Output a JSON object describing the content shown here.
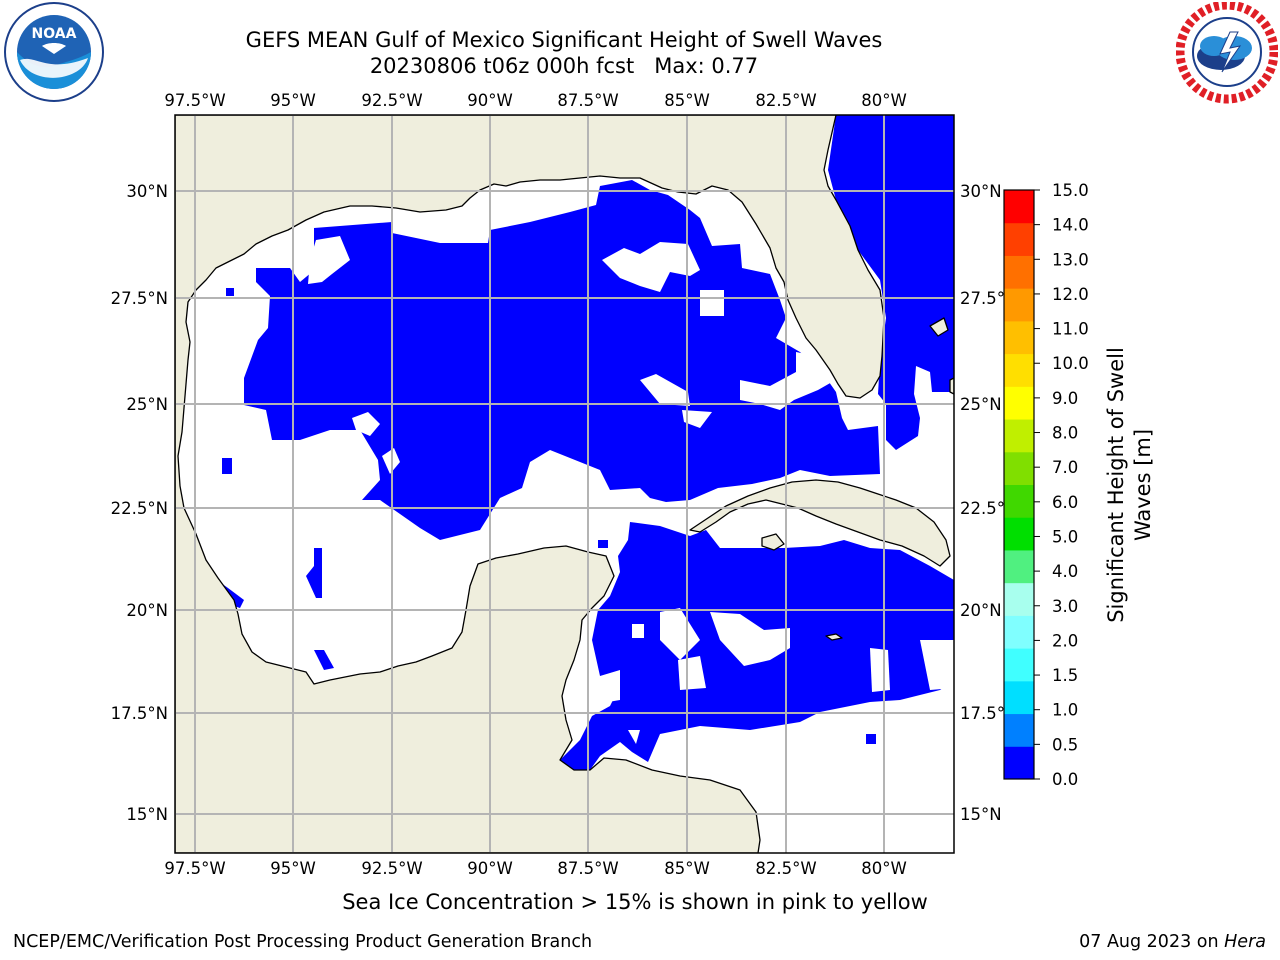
{
  "title": {
    "line1": "GEFS MEAN Gulf of Mexico Significant Height of Swell Waves",
    "line2": "20230806 t06z 000h fcst   Max: 0.77"
  },
  "logos": {
    "left": "noaa-logo",
    "right": "nws-logo",
    "left_text": "NOAA"
  },
  "map": {
    "lon_ticks": [
      "97.5°W",
      "95°W",
      "92.5°W",
      "90°W",
      "87.5°W",
      "85°W",
      "82.5°W",
      "80°W"
    ],
    "lat_ticks_left": [
      "30°N",
      "27.5°N",
      "25°N",
      "22.5°N",
      "20°N",
      "17.5°N",
      "15°N"
    ],
    "lat_ticks_right": [
      "30°N",
      "27.5°N",
      "25°N",
      "22.5°N",
      "20°N",
      "17.5°N",
      "15°N"
    ],
    "land_color": "#efeedd",
    "grid_color": "#b4b4b4"
  },
  "colorbar": {
    "label_line1": "Significant Height of Swell",
    "label_line2": "Waves [m]",
    "tick_labels": [
      "0.0",
      "0.5",
      "1.0",
      "1.5",
      "2.0",
      "3.0",
      "4.0",
      "5.0",
      "6.0",
      "7.0",
      "8.0",
      "9.0",
      "10.0",
      "11.0",
      "12.0",
      "13.0",
      "14.0",
      "15.0"
    ],
    "colors": [
      "#0000ff",
      "#0080ff",
      "#00dfff",
      "#40ffff",
      "#80ffff",
      "#a8ffee",
      "#50f080",
      "#00df00",
      "#40d800",
      "#80df00",
      "#c0ef00",
      "#ffff00",
      "#ffdf00",
      "#ffbf00",
      "#ff9900",
      "#ff7000",
      "#ff4000",
      "#ff0000"
    ]
  },
  "footer": {
    "note": "Sea Ice Concentration > 15% is shown in pink to yellow",
    "left": "NCEP/EMC/Verification Post Processing Product Generation Branch",
    "right_prefix": "07 Aug 2023 on ",
    "right_machine": "Hera"
  }
}
